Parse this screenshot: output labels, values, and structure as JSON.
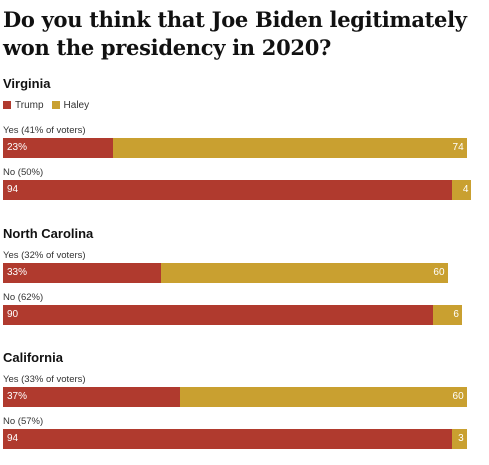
{
  "title": "Do you think that Joe Biden legitimately won the presidency in 2020?",
  "legend": [
    {
      "name": "Trump",
      "color": "#b03a2e"
    },
    {
      "name": "Haley",
      "color": "#c9a030"
    }
  ],
  "chart_data": {
    "type": "bar",
    "stacked": true,
    "orientation": "horizontal",
    "title": "Do you think that Joe Biden legitimately won the presidency in 2020?",
    "xlim": [
      0,
      100
    ],
    "series_colors": {
      "Trump": "#b03a2e",
      "Haley": "#c9a030"
    },
    "groups": [
      {
        "state": "Virginia",
        "rows": [
          {
            "label": "Yes (41% of voters)",
            "trump": 23,
            "haley": 74,
            "trump_label": "23%",
            "haley_label": "74"
          },
          {
            "label": "No (50%)",
            "trump": 94,
            "haley": 4,
            "trump_label": "94",
            "haley_label": "4"
          }
        ]
      },
      {
        "state": "North Carolina",
        "rows": [
          {
            "label": "Yes (32% of voters)",
            "trump": 33,
            "haley": 60,
            "trump_label": "33%",
            "haley_label": "60"
          },
          {
            "label": "No (62%)",
            "trump": 90,
            "haley": 6,
            "trump_label": "90",
            "haley_label": "6"
          }
        ]
      },
      {
        "state": "California",
        "rows": [
          {
            "label": "Yes (33% of voters)",
            "trump": 37,
            "haley": 60,
            "trump_label": "37%",
            "haley_label": "60"
          },
          {
            "label": "No (57%)",
            "trump": 94,
            "haley": 3,
            "trump_label": "94",
            "haley_label": "3"
          }
        ]
      }
    ]
  }
}
